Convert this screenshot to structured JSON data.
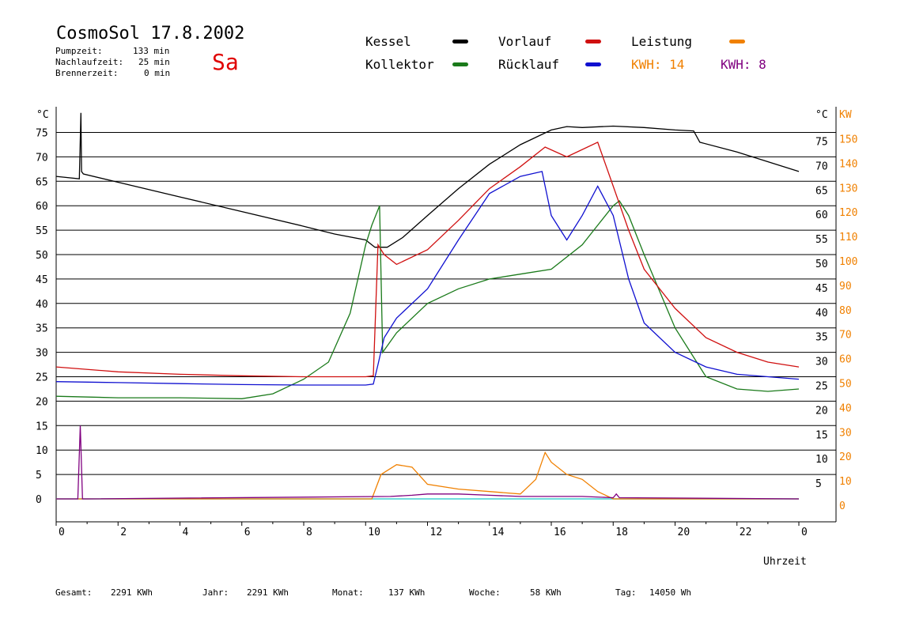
{
  "header": {
    "title": "CosmoSol 17.8.2002",
    "day": "Sa",
    "pumpzeit_label": "Pumpzeit:",
    "pumpzeit_value": "133 min",
    "nachlauf_label": "Nachlaufzeit:",
    "nachlauf_value": "25 min",
    "brenner_label": "Brennerzeit:",
    "brenner_value": "0 min"
  },
  "legend": {
    "kessel": "Kessel",
    "kollektor": "Kollektor",
    "vorlauf": "Vorlauf",
    "ruecklauf": "Rücklauf",
    "leistung": "Leistung",
    "kwh1": "KWH: 14",
    "kwh2": "KWH: 8"
  },
  "footer": {
    "gesamt_label": "Gesamt:",
    "gesamt_value": "2291 KWh",
    "jahr_label": "Jahr:",
    "jahr_value": "2291 KWh",
    "monat_label": "Monat:",
    "monat_value": "137 KWh",
    "woche_label": "Woche:",
    "woche_value": "58 KWh",
    "tag_label": "Tag:",
    "tag_value": "14050 Wh"
  },
  "colors": {
    "kessel": "#000000",
    "kollektor": "#1a7a1a",
    "vorlauf": "#d01010",
    "ruecklauf": "#1010d0",
    "leistung": "#f08000",
    "kwh2": "#800080",
    "baseline": "#40d0d0"
  },
  "chart_data": {
    "type": "line",
    "xlabel": "Uhrzeit",
    "ylabel_left": "°C",
    "ylabel_right_1": "°C",
    "ylabel_right_2": "KW",
    "xlim": [
      0,
      24
    ],
    "ylim": [
      -5,
      80
    ],
    "x_ticks": [
      "0",
      "2",
      "4",
      "6",
      "8",
      "10",
      "12",
      "14",
      "16",
      "18",
      "20",
      "22",
      "0"
    ],
    "y_ticks_left": [
      "0",
      "5",
      "10",
      "15",
      "20",
      "25",
      "30",
      "35",
      "40",
      "45",
      "50",
      "55",
      "60",
      "65",
      "70",
      "75"
    ],
    "y_ticks_right": [
      "5",
      "10",
      "15",
      "20",
      "25",
      "30",
      "35",
      "40",
      "45",
      "50",
      "55",
      "60",
      "65",
      "70",
      "75"
    ],
    "kw_ticks": [
      "0",
      "10",
      "20",
      "30",
      "40",
      "50",
      "60",
      "70",
      "80",
      "90",
      "100",
      "110",
      "120",
      "130",
      "140",
      "150"
    ],
    "grid": "horizontal",
    "series": [
      {
        "name": "Kessel",
        "color": "#000000",
        "x": [
          0,
          0.75,
          0.8,
          0.82,
          0.88,
          2,
          4,
          6,
          8,
          9,
          10,
          10.3,
          10.7,
          11.2,
          12,
          13,
          14,
          15,
          16,
          16.5,
          17,
          18,
          19,
          20,
          20.6,
          20.8,
          22,
          24
        ],
        "y": [
          66,
          65.5,
          79,
          67,
          66.5,
          64.8,
          61.8,
          58.8,
          55.8,
          54.2,
          53,
          51.5,
          51.5,
          53.5,
          58,
          63.5,
          68.5,
          72.5,
          75.5,
          76.2,
          76,
          76.3,
          76,
          75.5,
          75.3,
          73,
          71,
          67
        ]
      },
      {
        "name": "Kollektor",
        "color": "#1a7a1a",
        "x": [
          0,
          2,
          4,
          6,
          7,
          8,
          8.8,
          9.5,
          10,
          10.2,
          10.45,
          10.55,
          11,
          12,
          13,
          14,
          15,
          16,
          17,
          17.5,
          18,
          18.2,
          18.5,
          19,
          20,
          21,
          22,
          23,
          24
        ],
        "y": [
          21,
          20.7,
          20.7,
          20.5,
          21.5,
          24.5,
          28,
          38,
          52,
          56,
          60,
          30,
          34,
          40,
          43,
          45,
          46,
          47,
          52,
          56,
          60,
          61,
          58,
          50,
          35,
          25,
          22.5,
          22,
          22.5
        ]
      },
      {
        "name": "Vorlauf",
        "color": "#d01010",
        "x": [
          0,
          2,
          4,
          6,
          8,
          10,
          10.25,
          10.4,
          10.6,
          11,
          12,
          13,
          14,
          15,
          15.8,
          16.5,
          17.5,
          18,
          18.5,
          19,
          20,
          21,
          22,
          23,
          24
        ],
        "y": [
          27,
          26,
          25.5,
          25.2,
          25,
          25,
          25.2,
          52,
          50,
          48,
          51,
          57,
          63.5,
          68,
          72,
          70,
          73,
          64,
          55,
          47,
          39,
          33,
          30,
          28,
          27
        ]
      },
      {
        "name": "Rücklauf",
        "color": "#1010d0",
        "x": [
          0,
          2,
          4,
          6,
          8,
          10,
          10.25,
          10.4,
          10.6,
          11,
          12,
          13,
          14,
          15,
          15.7,
          16,
          16.5,
          17,
          17.5,
          18,
          18.5,
          19,
          20,
          21,
          22,
          23,
          24
        ],
        "y": [
          24,
          23.8,
          23.6,
          23.4,
          23.3,
          23.3,
          23.5,
          27.5,
          33,
          37,
          43,
          53,
          62.5,
          66,
          67,
          58,
          53,
          58,
          64,
          58,
          45,
          36,
          30,
          27,
          25.5,
          25,
          24.5
        ]
      },
      {
        "name": "Leistung",
        "color": "#f08000",
        "axis": "kw",
        "x": [
          0,
          10.2,
          10.5,
          11,
          11.5,
          12,
          13,
          14,
          15,
          15.5,
          15.8,
          16,
          16.5,
          17,
          17.5,
          18,
          24
        ],
        "y": [
          0,
          0,
          10,
          14,
          13,
          6,
          4,
          3,
          2,
          8,
          19,
          15,
          10,
          8,
          3,
          0,
          0
        ]
      },
      {
        "name": "KWH: 8",
        "color": "#800080",
        "axis": "kw",
        "x": [
          0,
          0.7,
          0.78,
          0.85,
          1,
          10.8,
          11.5,
          12,
          13,
          14,
          15,
          16,
          17,
          18,
          18.1,
          18.2,
          24
        ],
        "y": [
          0,
          0,
          30,
          0,
          0,
          1,
          1.5,
          2,
          2,
          1.5,
          1,
          1,
          1,
          0.5,
          2,
          0.5,
          0
        ]
      }
    ]
  }
}
